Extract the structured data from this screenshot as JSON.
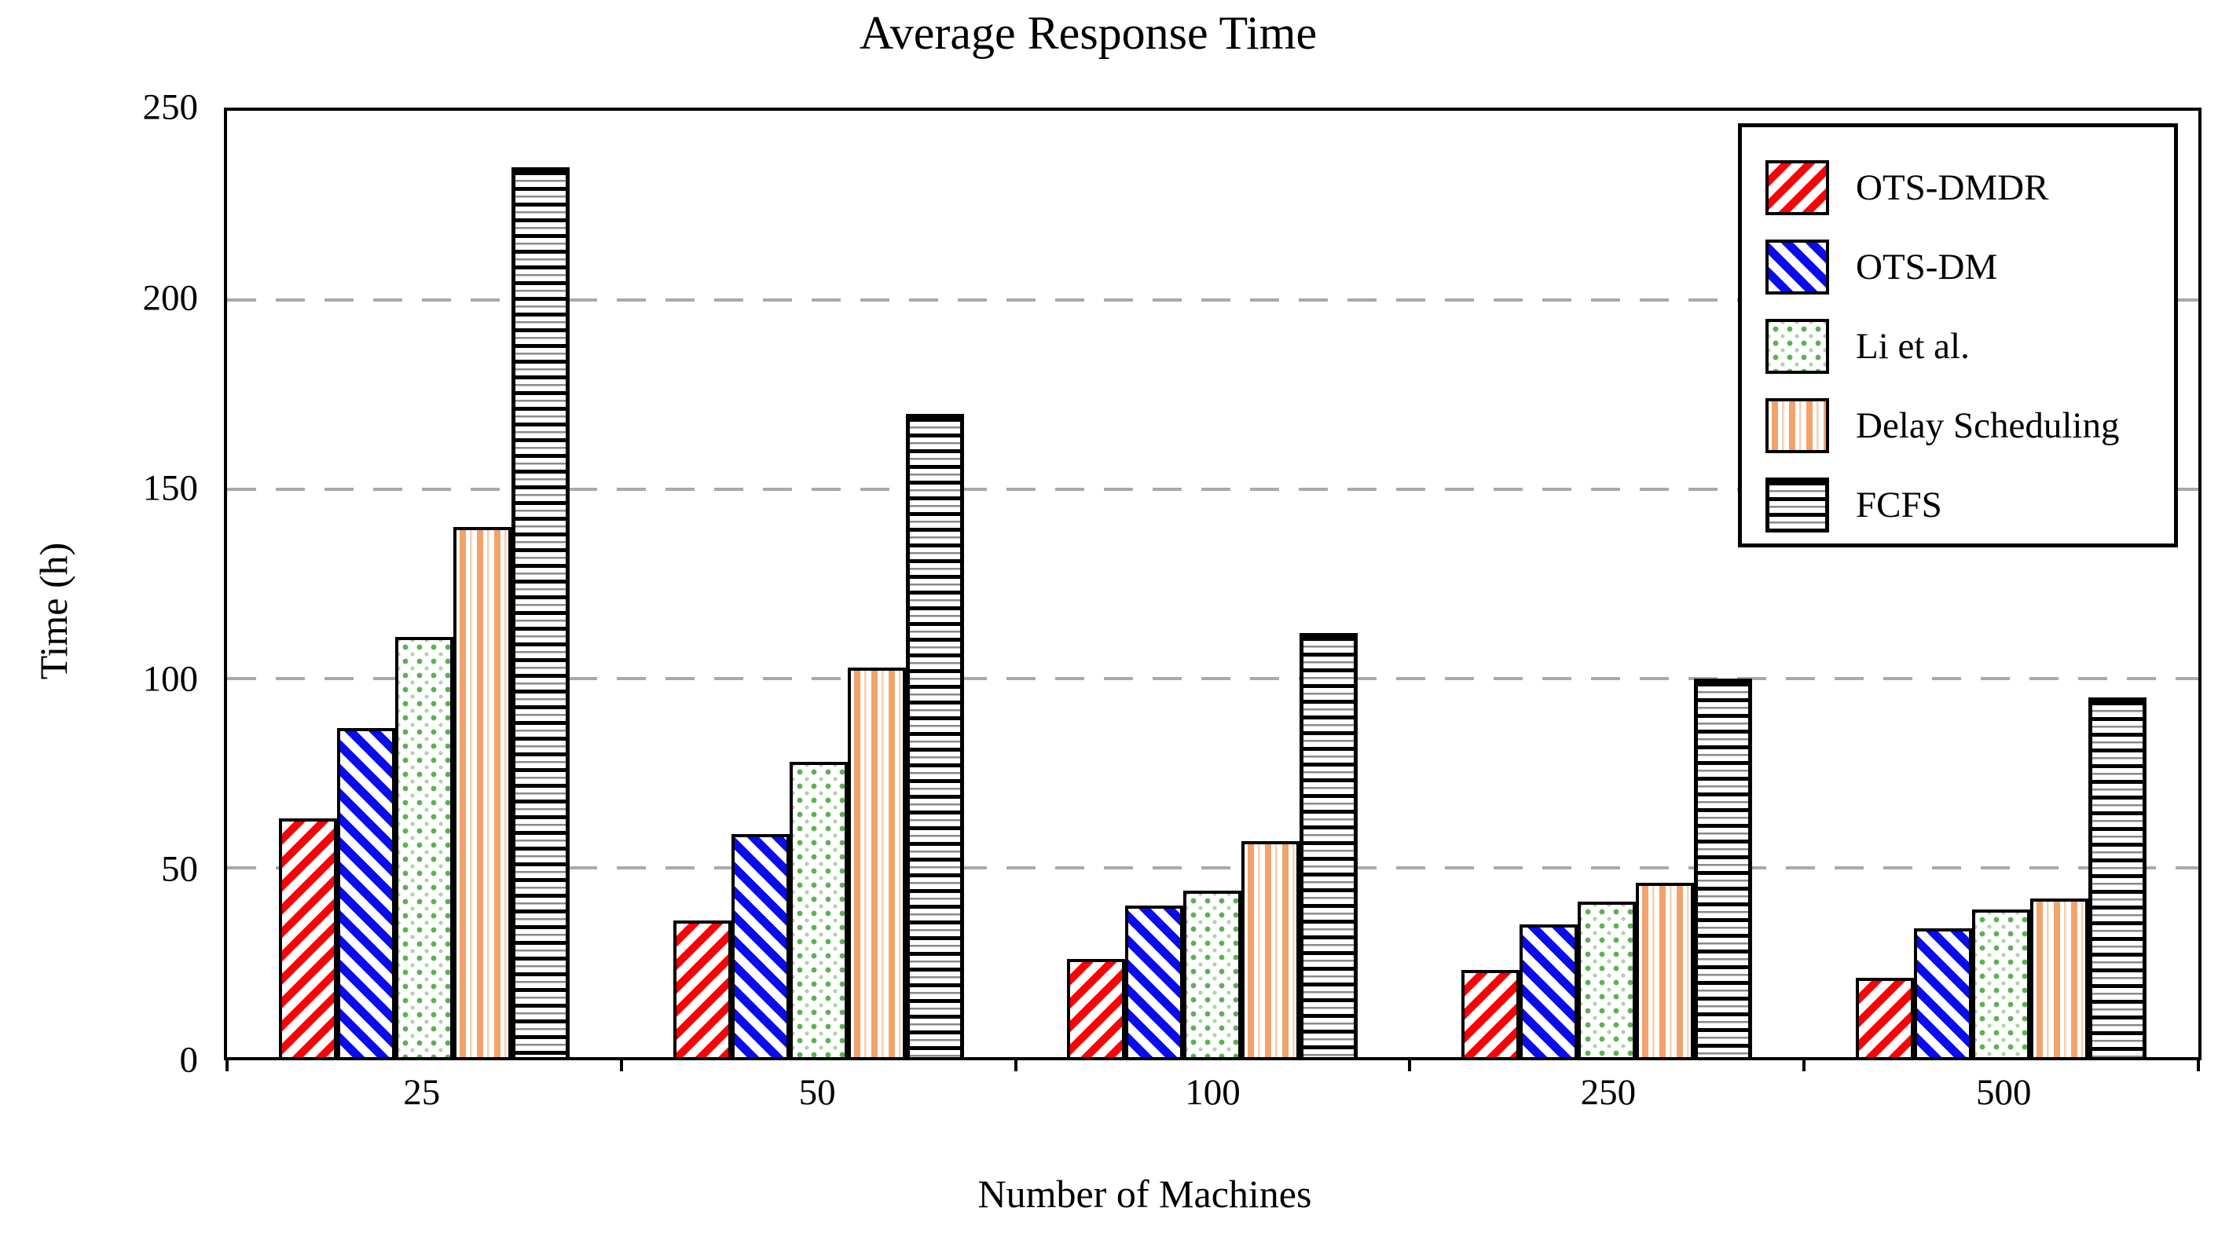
{
  "title": "Average Response Time",
  "y_axis": {
    "label": "Time (h)",
    "ticks": [
      250,
      200,
      150,
      100,
      50,
      0
    ],
    "max": 250,
    "gridlines": [
      200,
      150,
      100,
      50
    ]
  },
  "x_axis": {
    "label": "Number of Machines"
  },
  "legend": {
    "position": "top-right-inside",
    "items": [
      "OTS-DMDR",
      "OTS-DM",
      "Li et al.",
      "Delay Scheduling",
      "FCFS"
    ]
  },
  "colors": {
    "red": "#fb0207",
    "blue": "#0b0bec",
    "green": "#5cb152",
    "green_light": "#a9d8a1",
    "orange": "#f2a26b",
    "orange_light": "#f8cfae",
    "thin_line_gray": "#8a8a8a",
    "grid": "#a9a9a9",
    "frame": "#000000"
  },
  "chart_data": {
    "type": "bar",
    "title": "Average Response Time",
    "xlabel": "Number of Machines",
    "ylabel": "Time (h)",
    "ylim": [
      0,
      250
    ],
    "grid": "horizontal dashed gray lines at 50, 100, 150, 200",
    "legend_position": "top right inside plot",
    "categories": [
      "25",
      "50",
      "100",
      "250",
      "500"
    ],
    "series": [
      {
        "name": "OTS-DMDR",
        "pattern": "red diagonal / hatch",
        "values": [
          63,
          36,
          26,
          23,
          21
        ]
      },
      {
        "name": "OTS-DM",
        "pattern": "blue diagonal \\ hatch",
        "values": [
          87,
          59,
          40,
          35,
          34
        ]
      },
      {
        "name": "Li et al.",
        "pattern": "green dot grid",
        "values": [
          111,
          78,
          44,
          41,
          39
        ]
      },
      {
        "name": "Delay Scheduling",
        "pattern": "orange vertical stripes",
        "values": [
          140,
          103,
          57,
          46,
          42
        ]
      },
      {
        "name": "FCFS",
        "pattern": "black horizontal stripes",
        "values": [
          235,
          170,
          112,
          100,
          95
        ]
      }
    ]
  }
}
